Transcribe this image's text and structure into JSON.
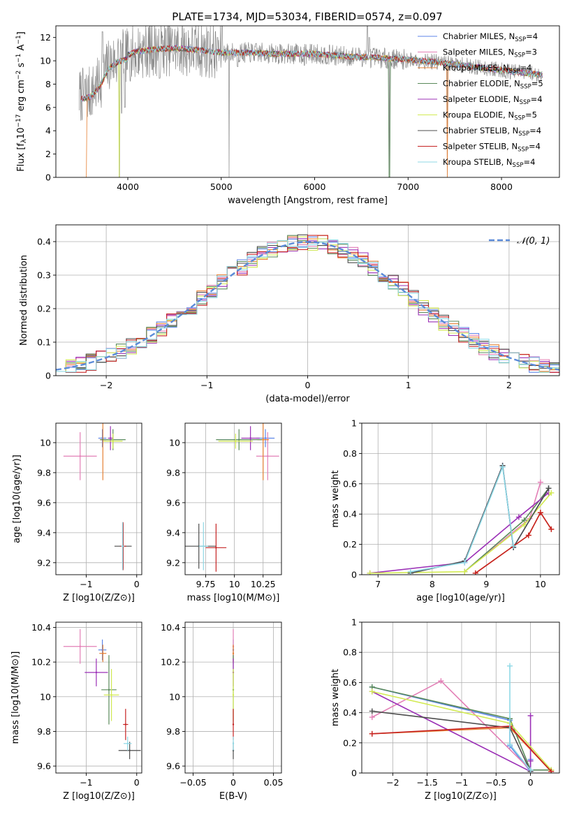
{
  "figure": {
    "title": "PLATE=1734, MJD=53034, FIBERID=0574, z=0.097"
  },
  "model_series": [
    {
      "label": "Chabrier MILES, N",
      "sub": "SSP",
      "suffix": "=4",
      "color": "#5d86e8"
    },
    {
      "label": "Salpeter MILES, N",
      "sub": "SSP",
      "suffix": "=3",
      "color": "#e37fb6"
    },
    {
      "label": "Kroupa MILES, N",
      "sub": "SSP",
      "suffix": "=4",
      "color": "#e68135"
    },
    {
      "label": "Chabrier ELODIE, N",
      "sub": "SSP",
      "suffix": "=5",
      "color": "#5a8a5a"
    },
    {
      "label": "Salpeter ELODIE, N",
      "sub": "SSP",
      "suffix": "=4",
      "color": "#9b2fb6"
    },
    {
      "label": "Kroupa ELODIE, N",
      "sub": "SSP",
      "suffix": "=5",
      "color": "#d2ea52"
    },
    {
      "label": "Chabrier STELIB, N",
      "sub": "SSP",
      "suffix": "=4",
      "color": "#4d4d4d"
    },
    {
      "label": "Salpeter STELIB, N",
      "sub": "SSP",
      "suffix": "=4",
      "color": "#c62222"
    },
    {
      "label": "Kroupa STELIB, N",
      "sub": "SSP",
      "suffix": "=4",
      "color": "#8fd9e6"
    }
  ],
  "chart_data": [
    {
      "id": "spectrum",
      "type": "line",
      "xlabel": "wavelength [Angstrom, rest frame]",
      "ylabel": "Flux [f_λ 10^-17 erg cm^-2 s^-1 A^-1]",
      "xlim": [
        3230,
        8620
      ],
      "ylim": [
        0,
        13
      ],
      "xticks": [
        4000,
        5000,
        6000,
        7000,
        8000
      ],
      "yticks": [
        0,
        2,
        4,
        6,
        8,
        10,
        12
      ],
      "grid": false,
      "legend_position": "top-right",
      "data_wavelength_range": [
        3480,
        8440
      ],
      "continuum_anchors": {
        "x": [
          3480,
          3600,
          3700,
          3800,
          3900,
          4000,
          4100,
          4300,
          4500,
          4800,
          5000,
          5300,
          5600,
          6000,
          6300,
          6600,
          7000,
          7300,
          7500,
          7700,
          8000,
          8300,
          8440
        ],
        "y": [
          7.0,
          7.2,
          8.1,
          9.7,
          10.2,
          10.5,
          10.8,
          11.0,
          11.1,
          10.9,
          10.7,
          10.7,
          10.6,
          10.6,
          10.4,
          10.3,
          10.1,
          9.9,
          9.7,
          9.5,
          9.2,
          8.9,
          8.8
        ]
      },
      "features": {
        "x": [
          3727,
          3934,
          3969,
          4101,
          4340,
          4861,
          4959,
          5007,
          5175,
          5890,
          6563,
          6583
        ],
        "y": [
          12.5,
          5.5,
          6.0,
          9.0,
          8.5,
          12.5,
          12.0,
          13.0,
          9.5,
          9.6,
          13.0,
          12.0
        ]
      },
      "dropouts": {
        "x": [
          3910,
          5085,
          6800,
          7420
        ],
        "y": [
          0,
          0,
          0,
          0
        ]
      }
    },
    {
      "id": "residual-histogram",
      "type": "bar",
      "xlabel": "(data-model)/error",
      "ylabel": "Normed distribution",
      "xlim": [
        -2.5,
        2.5
      ],
      "ylim": [
        0.0,
        0.45
      ],
      "xticks": [
        -2,
        -1,
        0,
        1,
        2
      ],
      "yticks": [
        0.0,
        0.1,
        0.2,
        0.3,
        0.4
      ],
      "grid": true,
      "legend_position": "top-right",
      "legend_label": "𝒩(0, 1)",
      "bin_edges_start": -2.5,
      "bin_width": 0.1,
      "gaussian": {
        "mean": 0,
        "sigma": 1,
        "color": "#5b8bd8"
      },
      "histograms": [
        {
          "values": [
            0.04,
            0.04,
            0.04,
            0.05,
            0.05,
            0.06,
            0.07,
            0.08,
            0.1,
            0.11,
            0.12,
            0.13,
            0.15,
            0.16,
            0.18,
            0.19,
            0.21,
            0.23,
            0.24,
            0.26,
            0.27,
            0.29,
            0.3,
            0.31,
            0.32,
            0.34,
            0.35,
            0.36,
            0.37,
            0.38,
            0.38,
            0.39,
            0.39,
            0.4,
            0.4,
            0.4,
            0.4,
            0.39,
            0.39,
            0.38,
            0.38,
            0.37,
            0.36,
            0.35,
            0.34,
            0.32,
            0.31,
            0.3,
            0.29,
            0.27
          ]
        },
        {
          "values": [
            0.27,
            0.26,
            0.24,
            0.23,
            0.21,
            0.19,
            0.18,
            0.16,
            0.15,
            0.13,
            0.12,
            0.11,
            0.1,
            0.08,
            0.07,
            0.06,
            0.05,
            0.05,
            0.04,
            0.04,
            0.03,
            0.03,
            0.03,
            0.03,
            0.03
          ]
        }
      ]
    },
    {
      "id": "age-vs-Z",
      "type": "scatter",
      "xlabel": "Z [log10(Z/Z⊙)]",
      "ylabel": "age [log10(age/yr)]",
      "xlim": [
        -1.6,
        0.1
      ],
      "ylim": [
        9.12,
        10.13
      ],
      "xticks": [
        -1,
        0
      ],
      "yticks": [
        9.2,
        9.4,
        9.6,
        9.8,
        10.0
      ],
      "grid": true,
      "points": [
        {
          "x": -0.68,
          "y": 10.03,
          "xerr": 0.08,
          "yerr": 0.06,
          "series": 0
        },
        {
          "x": -1.12,
          "y": 9.91,
          "xerr": 0.33,
          "yerr": 0.16,
          "series": 1
        },
        {
          "x": -0.67,
          "y": 10.02,
          "xerr": 0.06,
          "yerr": 0.27,
          "series": 2
        },
        {
          "x": -0.47,
          "y": 10.02,
          "xerr": 0.25,
          "yerr": 0.07,
          "series": 3
        },
        {
          "x": -0.52,
          "y": 10.03,
          "xerr": 0.05,
          "yerr": 0.08,
          "series": 4
        },
        {
          "x": -0.47,
          "y": 10.01,
          "xerr": 0.19,
          "yerr": 0.05,
          "series": 5
        },
        {
          "x": -0.27,
          "y": 9.31,
          "xerr": 0.17,
          "yerr": 0.15,
          "series": 6
        },
        {
          "x": -0.27,
          "y": 9.31,
          "xerr": 0.06,
          "yerr": 0.16,
          "series": 7
        },
        {
          "x": -0.28,
          "y": 9.31,
          "xerr": 0.03,
          "yerr": 0.16,
          "series": 8
        }
      ]
    },
    {
      "id": "age-vs-mass",
      "type": "scatter",
      "xlabel": "mass [log10(M/M⊙)]",
      "ylabel": "",
      "xlim": [
        9.57,
        10.41
      ],
      "ylim": [
        9.12,
        10.13
      ],
      "xticks": [
        9.75,
        10.0,
        10.25
      ],
      "yticks": [
        9.2,
        9.4,
        9.6,
        9.8,
        10.0
      ],
      "grid": true,
      "points": [
        {
          "x": 10.27,
          "y": 10.03,
          "xerr": 0.08,
          "yerr": 0.06,
          "series": 0
        },
        {
          "x": 10.29,
          "y": 9.91,
          "xerr": 0.1,
          "yerr": 0.16,
          "series": 1
        },
        {
          "x": 10.25,
          "y": 10.02,
          "xerr": 0.05,
          "yerr": 0.27,
          "series": 2
        },
        {
          "x": 10.04,
          "y": 10.02,
          "xerr": 0.2,
          "yerr": 0.07,
          "series": 3
        },
        {
          "x": 10.14,
          "y": 10.03,
          "xerr": 0.08,
          "yerr": 0.08,
          "series": 4
        },
        {
          "x": 10.01,
          "y": 10.01,
          "xerr": 0.15,
          "yerr": 0.05,
          "series": 5
        },
        {
          "x": 9.69,
          "y": 9.31,
          "xerr": 0.15,
          "yerr": 0.15,
          "series": 6
        },
        {
          "x": 9.84,
          "y": 9.3,
          "xerr": 0.09,
          "yerr": 0.16,
          "series": 7
        },
        {
          "x": 9.73,
          "y": 9.31,
          "xerr": 0.04,
          "yerr": 0.16,
          "series": 8
        }
      ]
    },
    {
      "id": "mass-weight-vs-age",
      "type": "line",
      "xlabel": "age [log10(age/yr)]",
      "ylabel": "mass weight",
      "xlim": [
        6.7,
        10.35
      ],
      "ylim": [
        0.0,
        1.0
      ],
      "xticks": [
        7,
        8,
        9,
        10
      ],
      "yticks": [
        0.0,
        0.2,
        0.4,
        0.6,
        0.8,
        1.0
      ],
      "grid": true,
      "series": [
        {
          "series": 0,
          "x": [
            7.6,
            8.6,
            9.3,
            9.5,
            10.15
          ],
          "y": [
            0.01,
            0.09,
            0.72,
            0.18,
            0.57
          ]
        },
        {
          "series": 1,
          "x": [
            8.6,
            9.8,
            10.0
          ],
          "y": [
            0.02,
            0.37,
            0.61
          ]
        },
        {
          "series": 2,
          "x": [
            8.8,
            9.78,
            10.0,
            10.2
          ],
          "y": [
            0.01,
            0.26,
            0.41,
            0.3
          ]
        },
        {
          "series": 3,
          "x": [
            8.6,
            9.7,
            10.15
          ],
          "y": [
            0.02,
            0.36,
            0.57
          ]
        },
        {
          "series": 4,
          "x": [
            6.85,
            8.6,
            9.6,
            10.15
          ],
          "y": [
            0.01,
            0.08,
            0.38,
            0.54
          ]
        },
        {
          "series": 5,
          "x": [
            6.85,
            8.6,
            9.7,
            10.2
          ],
          "y": [
            0.01,
            0.02,
            0.33,
            0.54
          ]
        },
        {
          "series": 6,
          "x": [
            7.6,
            8.6,
            9.3,
            9.5,
            10.15
          ],
          "y": [
            0.01,
            0.09,
            0.72,
            0.18,
            0.57
          ]
        },
        {
          "series": 7,
          "x": [
            8.8,
            9.78,
            10.0,
            10.2
          ],
          "y": [
            0.01,
            0.26,
            0.41,
            0.3
          ]
        },
        {
          "series": 8,
          "x": [
            7.6,
            8.6,
            9.3,
            9.5
          ],
          "y": [
            0.02,
            0.08,
            0.71,
            0.19
          ]
        }
      ]
    },
    {
      "id": "mass-vs-Z",
      "type": "scatter",
      "xlabel": "Z [log10(Z/Z⊙)]",
      "ylabel": "mass [log10(M/M⊙)]",
      "xlim": [
        -1.6,
        0.1
      ],
      "ylim": [
        9.56,
        10.43
      ],
      "xticks": [
        -1,
        0
      ],
      "yticks": [
        9.6,
        9.8,
        10.0,
        10.2,
        10.4
      ],
      "grid": true,
      "points": [
        {
          "x": -0.68,
          "y": 10.27,
          "xerr": 0.08,
          "yerr": 0.06,
          "series": 0
        },
        {
          "x": -1.12,
          "y": 10.29,
          "xerr": 0.33,
          "yerr": 0.1,
          "series": 1
        },
        {
          "x": -0.67,
          "y": 10.25,
          "xerr": 0.07,
          "yerr": 0.05,
          "series": 2
        },
        {
          "x": -0.55,
          "y": 10.04,
          "xerr": 0.15,
          "yerr": 0.2,
          "series": 3
        },
        {
          "x": -0.8,
          "y": 10.14,
          "xerr": 0.23,
          "yerr": 0.08,
          "series": 4
        },
        {
          "x": -0.5,
          "y": 10.01,
          "xerr": 0.15,
          "yerr": 0.15,
          "series": 5
        },
        {
          "x": -0.14,
          "y": 9.69,
          "xerr": 0.22,
          "yerr": 0.05,
          "series": 6
        },
        {
          "x": -0.22,
          "y": 9.84,
          "xerr": 0.05,
          "yerr": 0.09,
          "series": 7
        },
        {
          "x": -0.18,
          "y": 9.73,
          "xerr": 0.08,
          "yerr": 0.04,
          "series": 8
        }
      ]
    },
    {
      "id": "mass-vs-ebv",
      "type": "scatter",
      "xlabel": "E(B-V)",
      "ylabel": "",
      "xlim": [
        -0.06,
        0.06
      ],
      "ylim": [
        9.56,
        10.43
      ],
      "xticks": [
        -0.05,
        0.0,
        0.05
      ],
      "yticks": [
        9.6,
        9.8,
        10.0,
        10.2,
        10.4
      ],
      "grid": true,
      "points": [
        {
          "x": 0.0,
          "y": 10.27,
          "xerr": 0,
          "yerr": 0.06,
          "series": 0
        },
        {
          "x": 0.0,
          "y": 10.29,
          "xerr": 0,
          "yerr": 0.1,
          "series": 1
        },
        {
          "x": 0.0,
          "y": 10.25,
          "xerr": 0,
          "yerr": 0.05,
          "series": 2
        },
        {
          "x": 0.0,
          "y": 10.04,
          "xerr": 0,
          "yerr": 0.2,
          "series": 3
        },
        {
          "x": 0.0,
          "y": 10.14,
          "xerr": 0,
          "yerr": 0.08,
          "series": 4
        },
        {
          "x": 0.0,
          "y": 10.01,
          "xerr": 0,
          "yerr": 0.15,
          "series": 5
        },
        {
          "x": 0.0,
          "y": 9.69,
          "xerr": 0,
          "yerr": 0.05,
          "series": 6
        },
        {
          "x": 0.0,
          "y": 9.84,
          "xerr": 0,
          "yerr": 0.09,
          "series": 7
        },
        {
          "x": 0.0,
          "y": 9.73,
          "xerr": 0,
          "yerr": 0.04,
          "series": 8
        }
      ]
    },
    {
      "id": "mass-weight-vs-Z",
      "type": "line",
      "xlabel": "Z [log10(Z/Z⊙)]",
      "ylabel": "mass weight",
      "xlim": [
        -2.45,
        0.42
      ],
      "ylim": [
        0.0,
        1.0
      ],
      "xticks": [
        -2.0,
        -1.5,
        -1.0,
        -0.5,
        0.0
      ],
      "yticks": [
        0.0,
        0.2,
        0.4,
        0.6,
        0.8,
        1.0
      ],
      "grid": true,
      "series": [
        {
          "series": 0,
          "x": [
            -2.3,
            -0.3,
            -0.3,
            0.0,
            0.0
          ],
          "y": [
            0.57,
            0.35,
            0.18,
            0.01,
            0.09
          ]
        },
        {
          "series": 1,
          "x": [
            -2.3,
            -1.3,
            0.0
          ],
          "y": [
            0.37,
            0.61,
            0.02
          ]
        },
        {
          "series": 2,
          "x": [
            -2.3,
            -0.3,
            0.3
          ],
          "y": [
            0.26,
            0.3,
            0.01
          ]
        },
        {
          "series": 3,
          "x": [
            -2.3,
            -0.3,
            0.0,
            0.3
          ],
          "y": [
            0.57,
            0.36,
            0.02,
            0.02
          ]
        },
        {
          "series": 4,
          "x": [
            -2.3,
            0.0,
            0.0,
            0.0
          ],
          "y": [
            0.54,
            0.01,
            0.38,
            0.08
          ]
        },
        {
          "series": 5,
          "x": [
            -2.3,
            -0.3,
            0.3
          ],
          "y": [
            0.54,
            0.33,
            0.02
          ]
        },
        {
          "series": 6,
          "x": [
            -2.3,
            -0.3,
            0.0
          ],
          "y": [
            0.41,
            0.3,
            0.01
          ]
        },
        {
          "series": 7,
          "x": [
            -2.3,
            -0.3,
            0.3
          ],
          "y": [
            0.26,
            0.31,
            0.01
          ]
        },
        {
          "series": 8,
          "x": [
            -0.3,
            -0.3,
            0.0
          ],
          "y": [
            0.71,
            0.19,
            0.02
          ]
        }
      ]
    }
  ]
}
